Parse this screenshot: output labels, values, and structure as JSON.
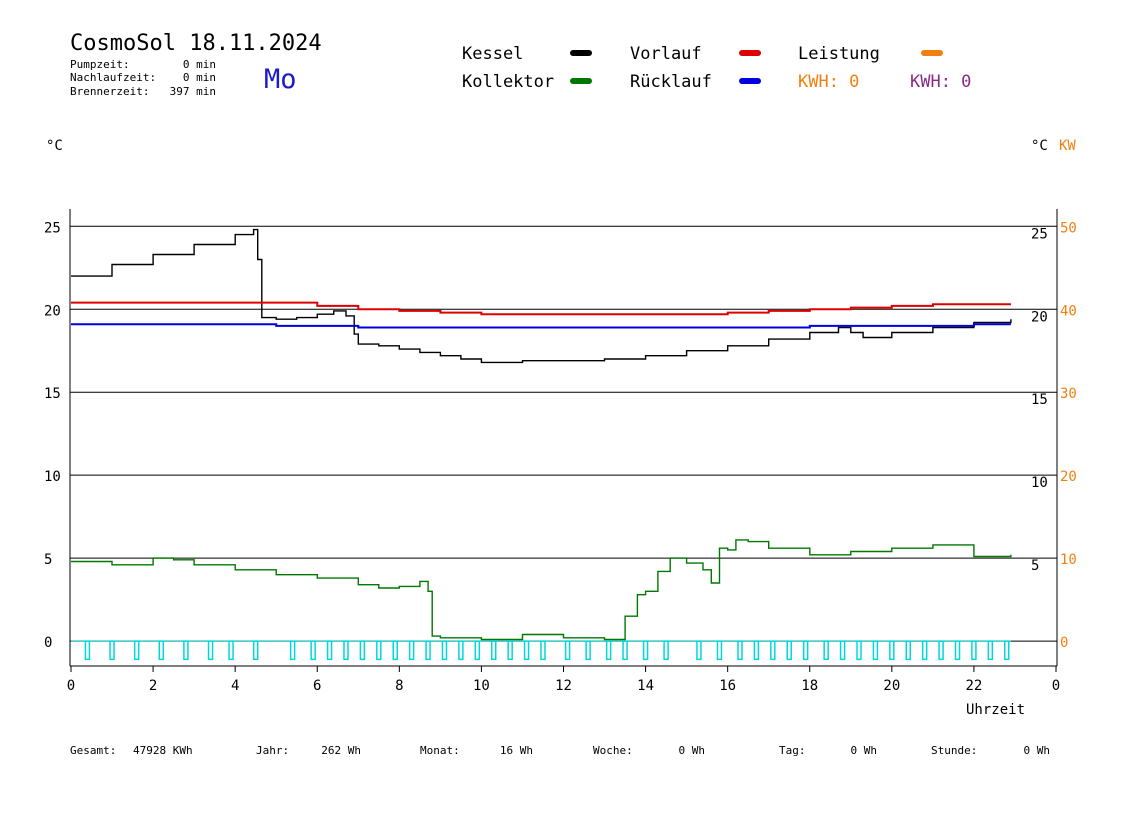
{
  "header": {
    "title": "CosmoSol 18.11.2024",
    "weekday": "Mo",
    "stats": [
      {
        "label": "Pumpzeit:",
        "value": "0 min"
      },
      {
        "label": "Nachlaufzeit:",
        "value": "0 min"
      },
      {
        "label": "Brennerzeit:",
        "value": "397 min"
      }
    ]
  },
  "legend": [
    {
      "label": "Kessel",
      "color": "#000000"
    },
    {
      "label": "Vorlauf",
      "color": "#dd0000"
    },
    {
      "label": "Leistung",
      "color": "#f08010"
    },
    {
      "label": "Kollektor",
      "color": "#007700"
    },
    {
      "label": "Rücklauf",
      "color": "#0000dd"
    }
  ],
  "kwh": [
    {
      "text": "KWH: 0",
      "color": "#f08010"
    },
    {
      "text": "KWH: 0",
      "color": "#8a2a8a"
    }
  ],
  "footer": [
    {
      "label": "Gesamt:",
      "value": "47928 KWh"
    },
    {
      "label": "Jahr:",
      "value": "262 Wh"
    },
    {
      "label": "Monat:",
      "value": "16 Wh"
    },
    {
      "label": "Woche:",
      "value": "0 Wh"
    },
    {
      "label": "Tag:",
      "value": "0 Wh"
    },
    {
      "label": "Stunde:",
      "value": "0 Wh"
    }
  ],
  "chart_data": {
    "type": "line",
    "title": "CosmoSol 18.11.2024",
    "xlabel": "Uhrzeit",
    "ylabel_left": "°C",
    "ylabel_right": "°C",
    "ylabel_right2": "KW",
    "xlim": [
      0,
      24
    ],
    "ylim": [
      -1.5,
      25.5
    ],
    "x_ticks": [
      "0",
      "2",
      "4",
      "6",
      "8",
      "10",
      "12",
      "14",
      "16",
      "18",
      "20",
      "22",
      "0"
    ],
    "y_ticks_left": [
      "25",
      "20",
      "15",
      "10",
      "5",
      "0"
    ],
    "y_ticks_right": [
      "25",
      "20",
      "15",
      "10",
      "5"
    ],
    "y_ticks_kw": [
      "50",
      "40",
      "30",
      "20",
      "10",
      "0"
    ],
    "grid": "horizontal",
    "series": [
      {
        "name": "Kessel",
        "color": "#000000",
        "x": [
          0,
          1,
          2,
          3,
          4,
          4.45,
          4.55,
          4.65,
          5,
          5.5,
          6,
          6.4,
          6.5,
          6.7,
          6.9,
          7.0,
          7.5,
          8.0,
          8.5,
          9.0,
          9.5,
          10.0,
          11.0,
          12.0,
          13.0,
          14.0,
          15.0,
          16.0,
          17.0,
          18.0,
          18.7,
          19.0,
          19.3,
          20.0,
          21.0,
          22.0,
          22.9
        ],
        "y": [
          22.0,
          22.7,
          23.3,
          23.9,
          24.5,
          24.8,
          23.0,
          19.5,
          19.4,
          19.5,
          19.7,
          19.9,
          19.9,
          19.6,
          18.5,
          17.9,
          17.8,
          17.6,
          17.4,
          17.2,
          17.0,
          16.8,
          16.9,
          16.9,
          17.0,
          17.2,
          17.5,
          17.8,
          18.2,
          18.6,
          18.9,
          18.6,
          18.3,
          18.6,
          18.9,
          19.2,
          19.4
        ]
      },
      {
        "name": "Vorlauf",
        "color": "#dd0000",
        "x": [
          0,
          2,
          4,
          5,
          6,
          7,
          8,
          9,
          10,
          11,
          12,
          13,
          14,
          15,
          16,
          17,
          18,
          19,
          20,
          21,
          22,
          22.9
        ],
        "y": [
          20.4,
          20.4,
          20.4,
          20.4,
          20.2,
          20.0,
          19.9,
          19.8,
          19.7,
          19.7,
          19.7,
          19.7,
          19.7,
          19.7,
          19.8,
          19.9,
          20.0,
          20.1,
          20.2,
          20.3,
          20.3,
          20.3
        ]
      },
      {
        "name": "Rücklauf",
        "color": "#0000dd",
        "x": [
          0,
          2,
          4,
          5,
          6,
          7,
          8,
          10,
          12,
          14,
          16,
          18,
          20,
          22,
          22.9
        ],
        "y": [
          19.1,
          19.1,
          19.1,
          19.0,
          19.0,
          18.9,
          18.9,
          18.9,
          18.9,
          18.9,
          18.9,
          19.0,
          19.0,
          19.1,
          19.1
        ]
      },
      {
        "name": "Kollektor",
        "color": "#007700",
        "x": [
          0,
          1,
          2,
          2.5,
          3,
          4,
          5,
          6,
          7,
          7.5,
          8.0,
          8.5,
          8.7,
          8.8,
          9,
          10,
          11,
          12,
          13,
          13.3,
          13.5,
          13.8,
          14,
          14.3,
          14.6,
          15.0,
          15.4,
          15.6,
          15.8,
          16.0,
          16.2,
          16.5,
          17,
          18,
          19,
          20,
          21,
          22,
          22.9
        ],
        "y": [
          4.8,
          4.6,
          5.0,
          4.9,
          4.6,
          4.3,
          4.0,
          3.8,
          3.4,
          3.2,
          3.3,
          3.6,
          3.0,
          0.3,
          0.2,
          0.1,
          0.4,
          0.2,
          0.1,
          0.1,
          1.5,
          2.8,
          3.0,
          4.2,
          5.0,
          4.7,
          4.3,
          3.5,
          5.6,
          5.5,
          6.1,
          6.0,
          5.6,
          5.2,
          5.4,
          5.6,
          5.8,
          5.1,
          5.2
        ]
      },
      {
        "name": "Leistung",
        "color": "#f08010",
        "x": [],
        "y": []
      }
    ],
    "pulses": {
      "color": "#00d8d8",
      "baseline": 0,
      "depth": -1.1,
      "x": [
        0.4,
        1.0,
        1.6,
        2.2,
        2.8,
        3.4,
        3.9,
        4.5,
        5.4,
        5.9,
        6.3,
        6.7,
        7.1,
        7.5,
        7.9,
        8.3,
        8.7,
        9.1,
        9.5,
        9.9,
        10.3,
        10.7,
        11.1,
        11.5,
        12.1,
        12.6,
        13.1,
        13.5,
        14.0,
        14.5,
        15.3,
        15.8,
        16.3,
        16.7,
        17.1,
        17.5,
        17.9,
        18.4,
        18.8,
        19.2,
        19.6,
        20.0,
        20.4,
        20.8,
        21.2,
        21.6,
        22.0,
        22.4,
        22.8
      ]
    }
  }
}
